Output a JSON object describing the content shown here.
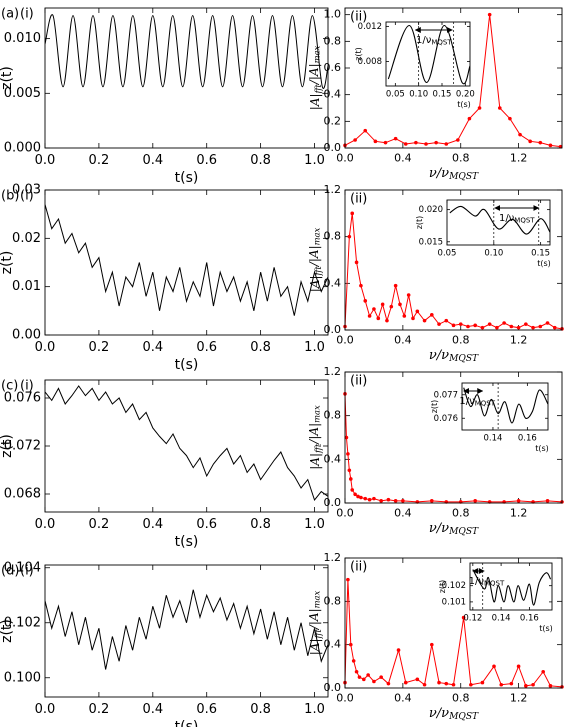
{
  "chart_data": [
    {
      "type": "line",
      "label": "(a)",
      "tag": "(i)",
      "xlabel": [
        "t(s)"
      ],
      "ylabel": [
        "z(t)"
      ],
      "color": "#000000",
      "xlim": [
        0,
        1.05
      ],
      "ylim": [
        0,
        0.0128
      ],
      "xticks": [
        {
          "value": 0,
          "label": "0.0"
        },
        0.2,
        0.4,
        0.6,
        0.8,
        {
          "value": 1,
          "label": "1.0"
        }
      ],
      "yticks": [
        {
          "value": 0,
          "label": "0.000"
        },
        0.005,
        {
          "value": 0.01,
          "label": "0.010"
        }
      ],
      "x": [
        0,
        0.03,
        0.067,
        0.104,
        0.141,
        0.178,
        0.215,
        0.252,
        0.289,
        0.326,
        0.363,
        0.4,
        0.437,
        0.474,
        0.511,
        0.548,
        0.585,
        0.622,
        0.659,
        0.696,
        0.733,
        0.77,
        0.807,
        0.844,
        0.881,
        0.918,
        0.955,
        0.992,
        1.029,
        1.05
      ],
      "values": [
        0.0095,
        0.0121,
        0.0056,
        0.0121,
        0.0056,
        0.0121,
        0.0056,
        0.0121,
        0.0056,
        0.0121,
        0.0056,
        0.0121,
        0.0056,
        0.0121,
        0.0056,
        0.0121,
        0.0056,
        0.0121,
        0.0056,
        0.0121,
        0.0056,
        0.0121,
        0.0056,
        0.0121,
        0.0056,
        0.0121,
        0.0056,
        0.0121,
        0.0056,
        0.0075
      ]
    },
    {
      "type": "line",
      "tag": "(ii)",
      "xlabel": [
        "ν/ν",
        "MQST"
      ],
      "ylabel": [
        "|A|",
        "fft",
        "/|A|",
        "max"
      ],
      "color": "#ff0000",
      "markers": true,
      "xlim": [
        0,
        1.5
      ],
      "ylim": [
        0,
        1.05
      ],
      "xticks": [
        {
          "value": 0,
          "label": "0.0"
        },
        0.4,
        0.8,
        1.2
      ],
      "yticks": [
        {
          "value": 0,
          "label": "0.0"
        },
        0.2,
        0.4,
        0.6,
        0.8,
        {
          "value": 1,
          "label": "1.0"
        }
      ],
      "x": [
        0,
        0.07,
        0.14,
        0.21,
        0.28,
        0.35,
        0.42,
        0.49,
        0.56,
        0.63,
        0.7,
        0.78,
        0.86,
        0.93,
        1.0,
        1.07,
        1.14,
        1.21,
        1.28,
        1.35,
        1.42,
        1.49
      ],
      "values": [
        0.02,
        0.06,
        0.13,
        0.05,
        0.04,
        0.07,
        0.03,
        0.04,
        0.03,
        0.04,
        0.03,
        0.06,
        0.22,
        0.3,
        1.0,
        0.3,
        0.22,
        0.1,
        0.05,
        0.04,
        0.02,
        0.01
      ]
    },
    {
      "type": "line",
      "xlabel": [
        "t(s)"
      ],
      "ylabel": [
        "z(t)"
      ],
      "color": "#000000",
      "annotation": [
        "1/ν",
        "MQST"
      ],
      "arrow": [
        0.093,
        0.172
      ],
      "vlines": [
        0.1,
        0.175
      ],
      "xlim": [
        0.03,
        0.21
      ],
      "ylim": [
        0.0052,
        0.0125
      ],
      "xticks": [
        0.05,
        {
          "value": 0.1,
          "label": "0.10"
        },
        0.15,
        {
          "value": 0.2,
          "label": "0.20"
        }
      ],
      "yticks": [
        0.008,
        0.012
      ],
      "x": [
        0.035,
        0.08,
        0.117,
        0.155,
        0.193,
        0.21
      ],
      "values": [
        0.006,
        0.0121,
        0.0056,
        0.0121,
        0.0056,
        0.0075
      ]
    },
    {
      "type": "line",
      "label": "(b)",
      "tag": "(i)",
      "xlabel": [
        "t(s)"
      ],
      "ylabel": [
        "z(t)"
      ],
      "color": "#000000",
      "xlim": [
        0,
        1.05
      ],
      "ylim": [
        0,
        0.03
      ],
      "xticks": [
        {
          "value": 0,
          "label": "0.0"
        },
        0.2,
        0.4,
        0.6,
        0.8,
        {
          "value": 1,
          "label": "1.0"
        }
      ],
      "yticks": [
        {
          "value": 0,
          "label": "0.00"
        },
        0.01,
        0.02,
        0.03
      ],
      "x": [
        0,
        0.025,
        0.05,
        0.075,
        0.1,
        0.125,
        0.15,
        0.175,
        0.2,
        0.225,
        0.25,
        0.275,
        0.3,
        0.325,
        0.35,
        0.375,
        0.4,
        0.425,
        0.45,
        0.475,
        0.5,
        0.525,
        0.55,
        0.575,
        0.6,
        0.625,
        0.65,
        0.675,
        0.7,
        0.725,
        0.75,
        0.775,
        0.8,
        0.825,
        0.85,
        0.875,
        0.9,
        0.925,
        0.95,
        0.975,
        1,
        1.025,
        1.05
      ],
      "values": [
        0.027,
        0.022,
        0.024,
        0.019,
        0.021,
        0.017,
        0.019,
        0.014,
        0.016,
        0.009,
        0.013,
        0.006,
        0.012,
        0.01,
        0.015,
        0.008,
        0.013,
        0.005,
        0.012,
        0.009,
        0.014,
        0.007,
        0.011,
        0.008,
        0.015,
        0.006,
        0.013,
        0.009,
        0.012,
        0.007,
        0.011,
        0.005,
        0.013,
        0.007,
        0.014,
        0.008,
        0.01,
        0.004,
        0.011,
        0.007,
        0.013,
        0.009,
        0.012
      ]
    },
    {
      "type": "line",
      "tag": "(ii)",
      "xlabel": [
        "ν/ν",
        "MQST"
      ],
      "ylabel": [
        "|A|",
        "fft",
        "/|A|",
        "max"
      ],
      "color": "#ff0000",
      "markers": true,
      "xlim": [
        0,
        1.5
      ],
      "ylim": [
        0,
        1.2
      ],
      "xticks": [
        {
          "value": 0,
          "label": "0.0"
        },
        0.4,
        0.8,
        1.2
      ],
      "yticks": [
        {
          "value": 0,
          "label": "0.0"
        },
        0.4,
        0.8,
        1.2
      ],
      "x": [
        0,
        0.03,
        0.05,
        0.08,
        0.11,
        0.14,
        0.17,
        0.2,
        0.23,
        0.26,
        0.29,
        0.32,
        0.35,
        0.38,
        0.41,
        0.44,
        0.47,
        0.5,
        0.55,
        0.6,
        0.65,
        0.7,
        0.75,
        0.8,
        0.85,
        0.9,
        0.95,
        1.0,
        1.05,
        1.1,
        1.15,
        1.2,
        1.25,
        1.3,
        1.35,
        1.4,
        1.45,
        1.5
      ],
      "values": [
        0.03,
        0.8,
        1.0,
        0.58,
        0.38,
        0.25,
        0.12,
        0.18,
        0.1,
        0.22,
        0.08,
        0.2,
        0.38,
        0.22,
        0.12,
        0.3,
        0.1,
        0.16,
        0.08,
        0.13,
        0.05,
        0.08,
        0.04,
        0.05,
        0.03,
        0.04,
        0.02,
        0.05,
        0.02,
        0.06,
        0.03,
        0.02,
        0.05,
        0.02,
        0.03,
        0.06,
        0.02,
        0.01
      ]
    },
    {
      "type": "line",
      "xlabel": [
        "t(s)"
      ],
      "ylabel": [
        "z(t)"
      ],
      "color": "#000000",
      "annotation": [
        "1/ν",
        "MQST"
      ],
      "arrow": [
        0.101,
        0.148
      ],
      "vlines": [
        0.1,
        0.148
      ],
      "xlim": [
        0.05,
        0.16
      ],
      "ylim": [
        0.0145,
        0.0215
      ],
      "xticks": [
        0.05,
        {
          "value": 0.1,
          "label": "0.10"
        },
        0.15
      ],
      "yticks": [
        0.015,
        {
          "value": 0.02,
          "label": "0.020"
        }
      ],
      "x": [
        0.053,
        0.065,
        0.08,
        0.09,
        0.105,
        0.12,
        0.135,
        0.15,
        0.16
      ],
      "values": [
        0.0195,
        0.0205,
        0.019,
        0.02,
        0.017,
        0.0185,
        0.0162,
        0.0186,
        0.0165
      ]
    },
    {
      "type": "line",
      "label": "(c)",
      "tag": "(i)",
      "xlabel": [
        "t(s)"
      ],
      "ylabel": [
        "z(t)"
      ],
      "color": "#000000",
      "xlim": [
        0,
        1.05
      ],
      "ylim": [
        0.0665,
        0.0775
      ],
      "xticks": [
        {
          "value": 0,
          "label": "0.0"
        },
        0.2,
        0.4,
        0.6,
        0.8,
        {
          "value": 1,
          "label": "1.0"
        }
      ],
      "yticks": [
        0.068,
        0.072,
        0.076
      ],
      "x": [
        0,
        0.025,
        0.05,
        0.075,
        0.1,
        0.125,
        0.15,
        0.175,
        0.2,
        0.225,
        0.25,
        0.275,
        0.3,
        0.325,
        0.35,
        0.375,
        0.4,
        0.425,
        0.45,
        0.475,
        0.5,
        0.525,
        0.55,
        0.575,
        0.6,
        0.625,
        0.65,
        0.675,
        0.7,
        0.725,
        0.75,
        0.775,
        0.8,
        0.825,
        0.85,
        0.875,
        0.9,
        0.925,
        0.95,
        0.975,
        1,
        1.025,
        1.05
      ],
      "values": [
        0.0765,
        0.0758,
        0.0768,
        0.0755,
        0.0762,
        0.077,
        0.0762,
        0.0768,
        0.0758,
        0.0765,
        0.0755,
        0.076,
        0.0748,
        0.0755,
        0.0742,
        0.0748,
        0.0735,
        0.0728,
        0.0722,
        0.073,
        0.0718,
        0.0712,
        0.0702,
        0.071,
        0.0695,
        0.0705,
        0.0712,
        0.0718,
        0.0705,
        0.0712,
        0.0698,
        0.0705,
        0.0692,
        0.07,
        0.0708,
        0.0715,
        0.0702,
        0.0695,
        0.0685,
        0.0692,
        0.0675,
        0.0682,
        0.0678
      ]
    },
    {
      "type": "line",
      "tag": "(ii)",
      "xlabel": [
        "ν/ν",
        "MQST"
      ],
      "ylabel": [
        "|A|",
        "fft",
        "/|A|",
        "max"
      ],
      "color": "#ff0000",
      "markers": true,
      "xlim": [
        0,
        1.5
      ],
      "ylim": [
        0,
        1.2
      ],
      "xticks": [
        {
          "value": 0,
          "label": "0.0"
        },
        0.4,
        0.8,
        1.2
      ],
      "yticks": [
        {
          "value": 0,
          "label": "0.0"
        },
        0.4,
        0.8,
        1.2
      ],
      "x": [
        0,
        0.01,
        0.02,
        0.03,
        0.04,
        0.05,
        0.07,
        0.09,
        0.11,
        0.14,
        0.17,
        0.2,
        0.25,
        0.3,
        0.35,
        0.4,
        0.5,
        0.6,
        0.7,
        0.8,
        0.9,
        1.0,
        1.1,
        1.2,
        1.3,
        1.4,
        1.5
      ],
      "values": [
        1.0,
        0.6,
        0.45,
        0.3,
        0.22,
        0.12,
        0.08,
        0.06,
        0.05,
        0.04,
        0.03,
        0.04,
        0.02,
        0.03,
        0.02,
        0.02,
        0.01,
        0.02,
        0.01,
        0.01,
        0.02,
        0.01,
        0.01,
        0.02,
        0.01,
        0.02,
        0.01
      ]
    },
    {
      "type": "line",
      "xlabel": [
        "t(s)"
      ],
      "ylabel": [
        "z(t)"
      ],
      "color": "#000000",
      "annotation": [
        "1/ν",
        "MQST"
      ],
      "arrow": [
        0.123,
        0.134
      ],
      "vlines": [
        0.143
      ],
      "xlim": [
        0.122,
        0.172
      ],
      "ylim": [
        0.0755,
        0.0775
      ],
      "xticks": [
        0.14,
        0.16
      ],
      "yticks": [
        0.076,
        0.077
      ],
      "x": [
        0.123,
        0.127,
        0.131,
        0.135,
        0.139,
        0.143,
        0.147,
        0.151,
        0.155,
        0.159,
        0.163,
        0.167,
        0.172
      ],
      "values": [
        0.0773,
        0.0765,
        0.077,
        0.0761,
        0.0768,
        0.0762,
        0.0767,
        0.0758,
        0.0766,
        0.076,
        0.0763,
        0.0772,
        0.0766
      ]
    },
    {
      "type": "line",
      "label": "(d)",
      "tag": "(i)",
      "xlabel": [
        "t(s)"
      ],
      "ylabel": [
        "z(t)"
      ],
      "color": "#000000",
      "xlim": [
        0,
        1.05
      ],
      "ylim": [
        0.0993,
        0.1041
      ],
      "xticks": [
        {
          "value": 0,
          "label": "0.0"
        },
        0.2,
        0.4,
        0.6,
        0.8,
        {
          "value": 1,
          "label": "1.0"
        }
      ],
      "yticks": [
        {
          "value": 0.1,
          "label": "0.100"
        },
        0.102,
        0.104
      ],
      "x": [
        0,
        0.025,
        0.05,
        0.075,
        0.1,
        0.125,
        0.15,
        0.175,
        0.2,
        0.225,
        0.25,
        0.275,
        0.3,
        0.325,
        0.35,
        0.375,
        0.4,
        0.425,
        0.45,
        0.475,
        0.5,
        0.525,
        0.55,
        0.575,
        0.6,
        0.625,
        0.65,
        0.675,
        0.7,
        0.725,
        0.75,
        0.775,
        0.8,
        0.825,
        0.85,
        0.875,
        0.9,
        0.925,
        0.95,
        0.975,
        1,
        1.025,
        1.05
      ],
      "values": [
        0.1028,
        0.1018,
        0.1026,
        0.1015,
        0.1024,
        0.1012,
        0.1022,
        0.101,
        0.1018,
        0.1003,
        0.1015,
        0.1006,
        0.1019,
        0.101,
        0.1022,
        0.1014,
        0.1026,
        0.1018,
        0.103,
        0.1022,
        0.1028,
        0.102,
        0.1032,
        0.1022,
        0.103,
        0.1024,
        0.1029,
        0.1021,
        0.1027,
        0.1018,
        0.1026,
        0.1016,
        0.1025,
        0.1014,
        0.1024,
        0.1012,
        0.1022,
        0.101,
        0.102,
        0.1008,
        0.1018,
        0.1006,
        0.1012
      ]
    },
    {
      "type": "line",
      "tag": "(ii)",
      "xlabel": [
        "ν/ν",
        "MQST"
      ],
      "ylabel": [
        "|A|",
        "fft",
        "/|A|",
        "max"
      ],
      "color": "#ff0000",
      "markers": true,
      "xlim": [
        0,
        1.5
      ],
      "ylim": [
        0,
        1.2
      ],
      "xticks": [
        {
          "value": 0,
          "label": "0.0"
        },
        0.4,
        0.8,
        1.2
      ],
      "yticks": [
        {
          "value": 0,
          "label": "0.0"
        },
        0.4,
        0.8,
        1.2
      ],
      "x": [
        0,
        0.02,
        0.04,
        0.06,
        0.08,
        0.1,
        0.13,
        0.16,
        0.2,
        0.25,
        0.3,
        0.37,
        0.42,
        0.5,
        0.55,
        0.6,
        0.65,
        0.7,
        0.75,
        0.82,
        0.87,
        0.95,
        1.03,
        1.08,
        1.15,
        1.2,
        1.25,
        1.3,
        1.37,
        1.42,
        1.5
      ],
      "values": [
        0.05,
        1.0,
        0.4,
        0.25,
        0.15,
        0.1,
        0.08,
        0.12,
        0.06,
        0.1,
        0.04,
        0.35,
        0.05,
        0.08,
        0.03,
        0.4,
        0.05,
        0.04,
        0.03,
        0.65,
        0.03,
        0.05,
        0.2,
        0.03,
        0.04,
        0.2,
        0.02,
        0.03,
        0.15,
        0.02,
        0.01
      ]
    },
    {
      "type": "line",
      "xlabel": [
        "t(s)"
      ],
      "ylabel": [
        "z(t)"
      ],
      "color": "#000000",
      "annotation": [
        "1/ν",
        "MQST"
      ],
      "arrow": [
        0.12,
        0.128
      ],
      "vlines": [
        0.127
      ],
      "xlim": [
        0.118,
        0.176
      ],
      "ylim": [
        0.1005,
        0.1034
      ],
      "xticks": [
        0.12,
        0.14,
        0.16
      ],
      "yticks": [
        0.101,
        0.102
      ],
      "x": [
        0.12,
        0.128,
        0.131,
        0.135,
        0.138,
        0.142,
        0.145,
        0.149,
        0.152,
        0.156,
        0.16,
        0.163,
        0.167,
        0.172,
        0.175
      ],
      "values": [
        0.103,
        0.1018,
        0.1025,
        0.101,
        0.102,
        0.101,
        0.102,
        0.101,
        0.102,
        0.1011,
        0.1021,
        0.1008,
        0.1022,
        0.1028,
        0.1024
      ]
    }
  ]
}
